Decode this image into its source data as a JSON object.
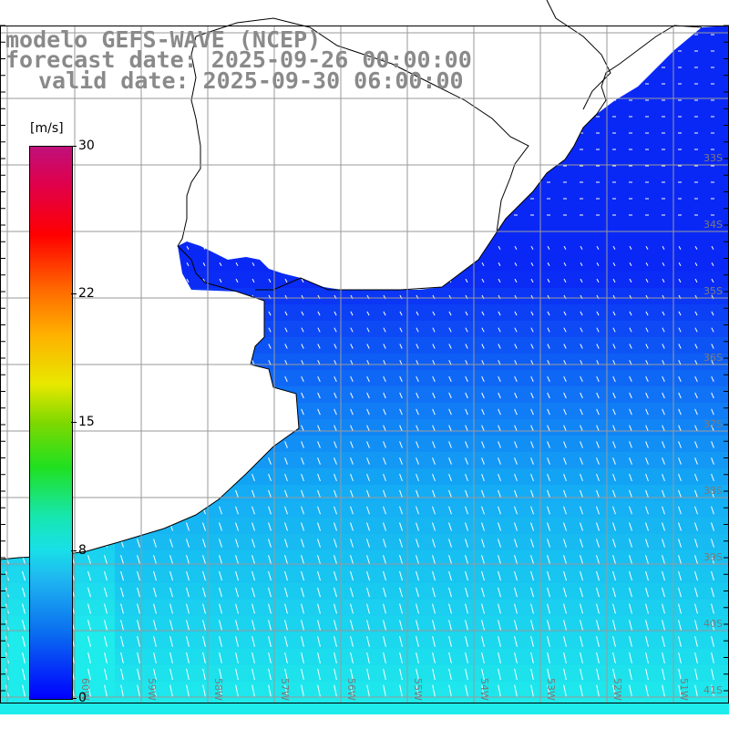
{
  "title": {
    "line1": "modelo GEFS-WAVE (NCEP)",
    "line2": "forecast date: 2025-09-26 00:00:00",
    "line3": "valid date: 2025-09-30 06:00:00"
  },
  "colorbar": {
    "unit": "[m/s]",
    "ticks": [
      {
        "value": 30,
        "label": "30"
      },
      {
        "value": 22,
        "label": "22"
      },
      {
        "value": 15,
        "label": "15"
      },
      {
        "value": 8,
        "label": "8"
      },
      {
        "value": 0,
        "label": "0"
      }
    ],
    "range": [
      0,
      30
    ],
    "colors": [
      "#0000ff",
      "#1fb8f0",
      "#18e0e8",
      "#20e020",
      "#e8e800",
      "#ff6a00",
      "#ff0000",
      "#c0107a"
    ]
  },
  "map": {
    "lat_labels": [
      "33S",
      "34S",
      "35S",
      "36S",
      "37S",
      "38S",
      "39S",
      "40S",
      "41S"
    ],
    "lon_labels": [
      "60W",
      "59W",
      "58W",
      "57W",
      "56W",
      "55W",
      "54W",
      "53W",
      "52W",
      "51W"
    ],
    "land_color": "#ffffff",
    "grid_color": "#9a9a9a"
  }
}
